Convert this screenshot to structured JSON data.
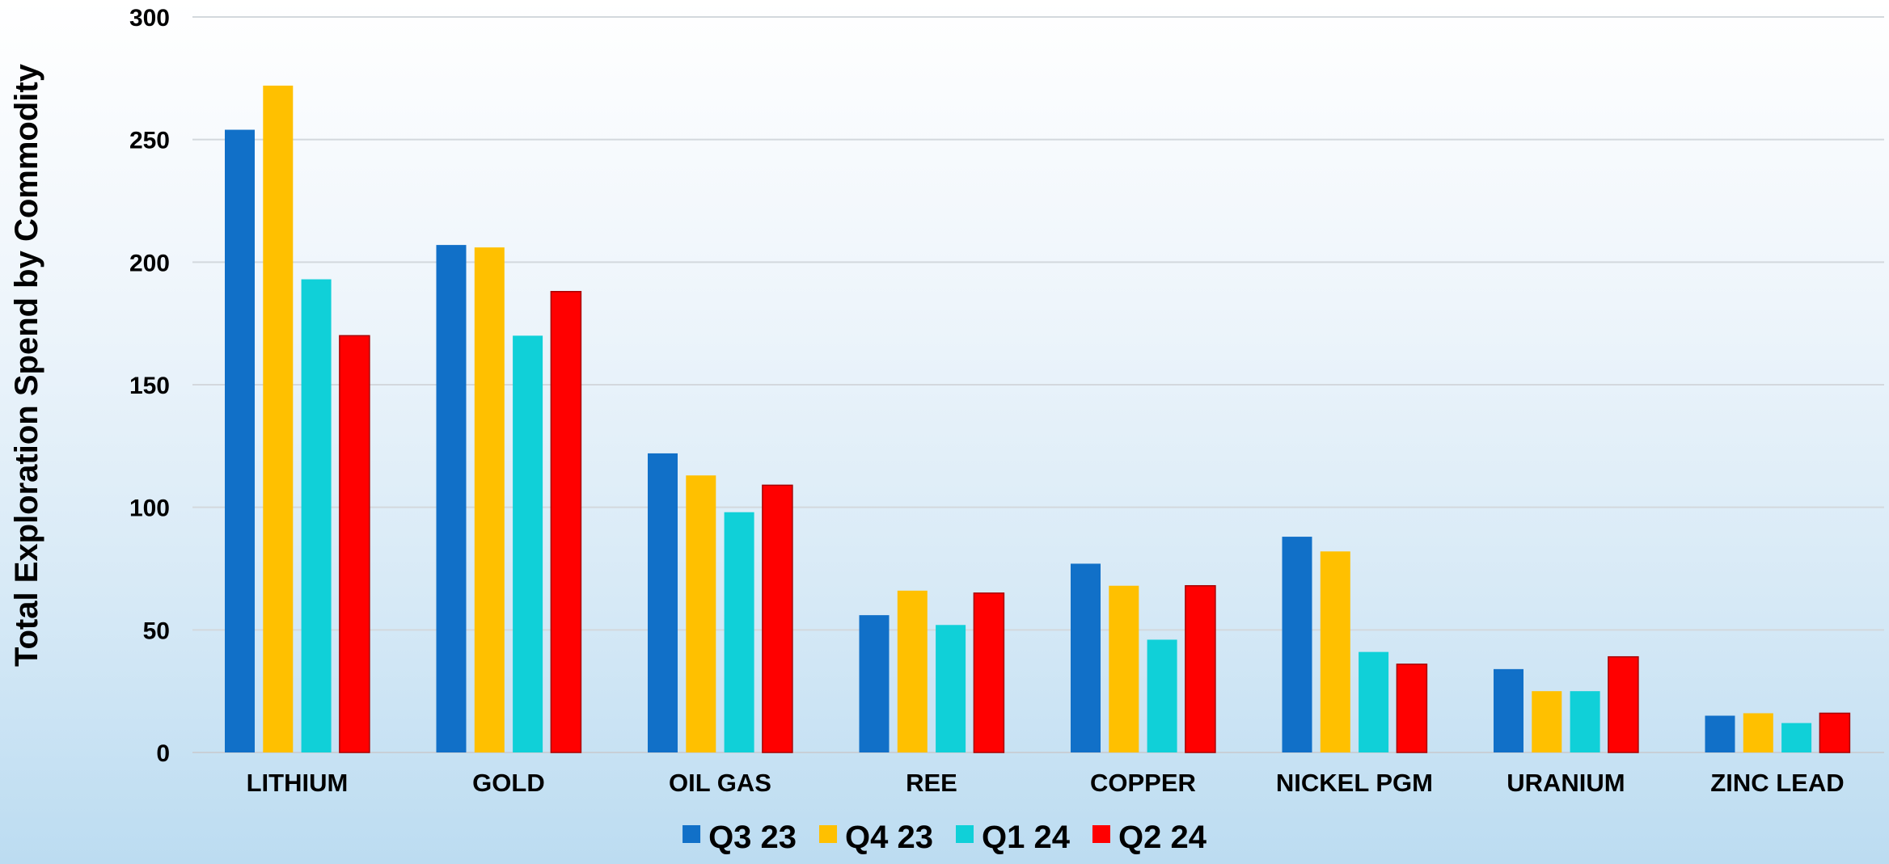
{
  "chart_data": {
    "type": "bar",
    "ylabel": "Total Exploration Spend by Commodity",
    "xlabel": "",
    "ylim": [
      0,
      300
    ],
    "yticks": [
      0,
      50,
      100,
      150,
      200,
      250,
      300
    ],
    "grid": true,
    "legend_position": "bottom",
    "categories": [
      "LITHIUM",
      "GOLD",
      "OIL GAS",
      "REE",
      "COPPER",
      "NICKEL PGM",
      "URANIUM",
      "ZINC LEAD"
    ],
    "series": [
      {
        "name": "Q3 23",
        "color": "#1170C8",
        "values": [
          254,
          207,
          122,
          56,
          77,
          88,
          34,
          15
        ]
      },
      {
        "name": "Q4 23",
        "color": "#FFC000",
        "values": [
          272,
          206,
          113,
          66,
          68,
          82,
          25,
          16
        ]
      },
      {
        "name": "Q1 24",
        "color": "#10D0D8",
        "values": [
          193,
          170,
          98,
          52,
          46,
          41,
          25,
          12
        ]
      },
      {
        "name": "Q2 24",
        "color": "#FF0000",
        "values": [
          170,
          188,
          109,
          65,
          68,
          36,
          39,
          16
        ]
      }
    ]
  }
}
